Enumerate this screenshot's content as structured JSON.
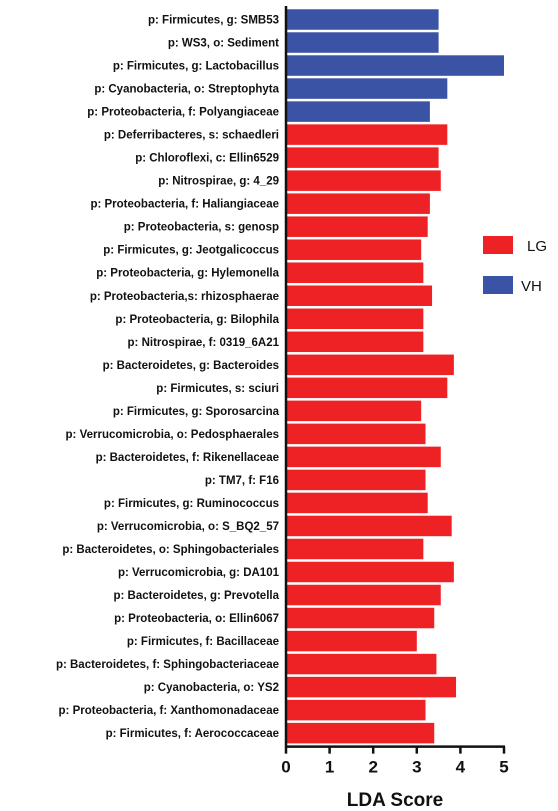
{
  "chart_data": {
    "type": "bar",
    "orientation": "horizontal",
    "xlabel": "LDA Score",
    "xlim": [
      0,
      5
    ],
    "xticks": [
      0,
      1,
      2,
      3,
      4,
      5
    ],
    "grid": false,
    "legend": {
      "placement": "right",
      "entries": [
        {
          "name": "LG",
          "color": "#ee2125"
        },
        {
          "name": "VH",
          "color": "#3a53a4"
        }
      ]
    },
    "bars": [
      {
        "label": "p: Firmicutes, g: SMB53",
        "value": 3.5,
        "group": "VH"
      },
      {
        "label": "p: WS3, o: Sediment",
        "value": 3.5,
        "group": "VH"
      },
      {
        "label": "p: Firmicutes, g: Lactobacillus",
        "value": 5.0,
        "group": "VH"
      },
      {
        "label": "p: Cyanobacteria, o: Streptophyta",
        "value": 3.7,
        "group": "VH"
      },
      {
        "label": "p: Proteobacteria, f: Polyangiaceae",
        "value": 3.3,
        "group": "VH"
      },
      {
        "label": "p: Deferribacteres, s: schaedleri",
        "value": 3.7,
        "group": "LG"
      },
      {
        "label": "p: Chloroflexi, c: Ellin6529",
        "value": 3.5,
        "group": "LG"
      },
      {
        "label": "p: Nitrospirae, g: 4_29",
        "value": 3.55,
        "group": "LG"
      },
      {
        "label": "p: Proteobacteria, f: Haliangiaceae",
        "value": 3.3,
        "group": "LG"
      },
      {
        "label": "p: Proteobacteria, s: genosp",
        "value": 3.25,
        "group": "LG"
      },
      {
        "label": "p: Firmicutes, g: Jeotgalicoccus",
        "value": 3.1,
        "group": "LG"
      },
      {
        "label": "p: Proteobacteria, g: Hylemonella",
        "value": 3.15,
        "group": "LG"
      },
      {
        "label": "p: Proteobacteria,s: rhizosphaerae",
        "value": 3.35,
        "group": "LG"
      },
      {
        "label": "p: Proteobacteria, g: Bilophila",
        "value": 3.15,
        "group": "LG"
      },
      {
        "label": "p: Nitrospirae, f: 0319_6A21",
        "value": 3.15,
        "group": "LG"
      },
      {
        "label": "p: Bacteroidetes, g: Bacteroides",
        "value": 3.85,
        "group": "LG"
      },
      {
        "label": "p: Firmicutes, s: sciuri",
        "value": 3.7,
        "group": "LG"
      },
      {
        "label": "p: Firmicutes, g: Sporosarcina",
        "value": 3.1,
        "group": "LG"
      },
      {
        "label": "p: Verrucomicrobia, o: Pedosphaerales",
        "value": 3.2,
        "group": "LG"
      },
      {
        "label": "p: Bacteroidetes, f: Rikenellaceae",
        "value": 3.55,
        "group": "LG"
      },
      {
        "label": "p: TM7, f: F16",
        "value": 3.2,
        "group": "LG"
      },
      {
        "label": "p: Firmicutes, g: Ruminococcus",
        "value": 3.25,
        "group": "LG"
      },
      {
        "label": "p: Verrucomicrobia, o: S_BQ2_57",
        "value": 3.8,
        "group": "LG"
      },
      {
        "label": "p: Bacteroidetes, o: Sphingobacteriales",
        "value": 3.15,
        "group": "LG"
      },
      {
        "label": "p: Verrucomicrobia, g: DA101",
        "value": 3.85,
        "group": "LG"
      },
      {
        "label": "p: Bacteroidetes, g: Prevotella",
        "value": 3.55,
        "group": "LG"
      },
      {
        "label": "p: Proteobacteria, o: Ellin6067",
        "value": 3.4,
        "group": "LG"
      },
      {
        "label": "p: Firmicutes, f: Bacillaceae",
        "value": 3.0,
        "group": "LG"
      },
      {
        "label": "p: Bacteroidetes, f: Sphingobacteriaceae",
        "value": 3.45,
        "group": "LG"
      },
      {
        "label": "p: Cyanobacteria, o: YS2",
        "value": 3.9,
        "group": "LG"
      },
      {
        "label": "p: Proteobacteria, f: Xanthomonadaceae",
        "value": 3.2,
        "group": "LG"
      },
      {
        "label": "p: Firmicutes, f: Aerococcaceae",
        "value": 3.4,
        "group": "LG"
      }
    ]
  }
}
